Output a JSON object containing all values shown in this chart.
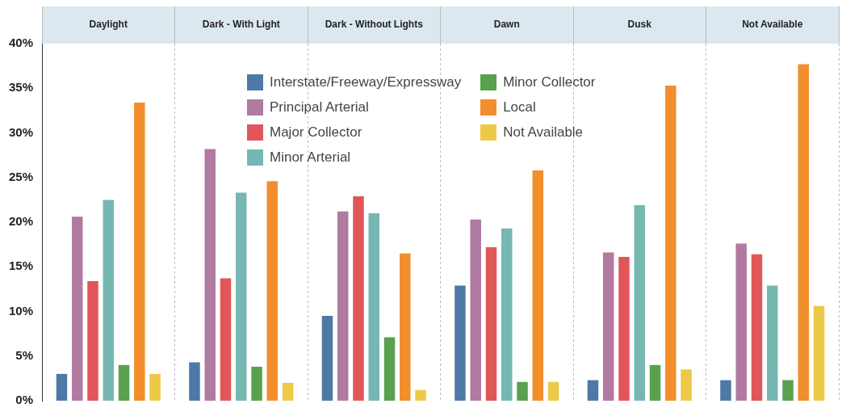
{
  "chart_data": {
    "type": "bar",
    "categories": [
      "Daylight",
      "Dark - With Light",
      "Dark - Without Lights",
      "Dawn",
      "Dusk",
      "Not Available"
    ],
    "series": [
      {
        "name": "Interstate/Freeway/Expressway",
        "color": "#4e79a7",
        "values": [
          3.0,
          4.3,
          9.5,
          12.9,
          2.3,
          2.3
        ]
      },
      {
        "name": "Principal Arterial",
        "color": "#b07aa1",
        "values": [
          20.6,
          28.2,
          21.2,
          20.3,
          16.6,
          17.6
        ]
      },
      {
        "name": "Major Collector",
        "color": "#e15759",
        "values": [
          13.4,
          13.7,
          22.9,
          17.2,
          16.1,
          16.4
        ]
      },
      {
        "name": "Minor Arterial",
        "color": "#76b7b2",
        "values": [
          22.5,
          23.3,
          21.0,
          19.3,
          21.9,
          12.9
        ]
      },
      {
        "name": "Minor Collector",
        "color": "#59a14f",
        "values": [
          4.0,
          3.8,
          7.1,
          2.1,
          4.0,
          2.3
        ]
      },
      {
        "name": "Local",
        "color": "#f28e2b",
        "values": [
          33.4,
          24.6,
          16.5,
          25.8,
          35.3,
          37.7
        ]
      },
      {
        "name": "Not Available",
        "color": "#edc948",
        "values": [
          3.0,
          2.0,
          1.2,
          2.1,
          3.5,
          10.6
        ]
      }
    ],
    "ylim": [
      0,
      40
    ],
    "yticks": [
      {
        "value": 0,
        "label": "0%"
      },
      {
        "value": 5,
        "label": "5%"
      },
      {
        "value": 10,
        "label": "10%"
      },
      {
        "value": 15,
        "label": "15%"
      },
      {
        "value": 20,
        "label": "20%"
      },
      {
        "value": 25,
        "label": "25%"
      },
      {
        "value": 30,
        "label": "30%"
      },
      {
        "value": 35,
        "label": "35%"
      },
      {
        "value": 40,
        "label": "40%"
      }
    ],
    "grid": "x",
    "legend": "top"
  }
}
